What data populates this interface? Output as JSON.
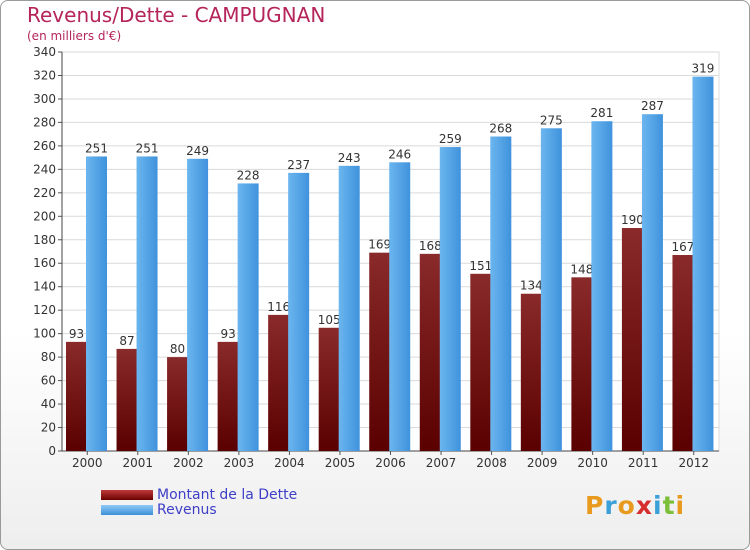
{
  "chart_data": {
    "type": "bar",
    "title": "Revenus/Dette - CAMPUGNAN",
    "subtitle": "(en milliers d'€)",
    "categories": [
      "2000",
      "2001",
      "2002",
      "2003",
      "2004",
      "2005",
      "2006",
      "2007",
      "2008",
      "2009",
      "2010",
      "2011",
      "2012"
    ],
    "series": [
      {
        "name": "Montant de la Dette",
        "values": [
          93,
          87,
          80,
          93,
          116,
          105,
          169,
          168,
          151,
          134,
          148,
          190,
          167
        ],
        "color": "#7a1010"
      },
      {
        "name": "Revenus",
        "values": [
          251,
          251,
          249,
          228,
          237,
          243,
          246,
          259,
          268,
          275,
          281,
          287,
          319
        ],
        "color": "#4fa3e3"
      }
    ],
    "ylim": [
      0,
      340
    ],
    "yticks": [
      0,
      20,
      40,
      60,
      80,
      100,
      120,
      140,
      160,
      180,
      200,
      220,
      240,
      260,
      280,
      300,
      320,
      340
    ],
    "grid": true,
    "legend_position": "bottom-left"
  },
  "logo": {
    "text": "Proxiti",
    "letters": [
      "P",
      "r",
      "o",
      "x",
      "i",
      "t",
      "i"
    ],
    "colors": [
      "#e89a1e",
      "#3ba0d8",
      "#e89a1e",
      "#d62e2e",
      "#3ba0d8",
      "#7bbf3a",
      "#e89a1e"
    ]
  }
}
